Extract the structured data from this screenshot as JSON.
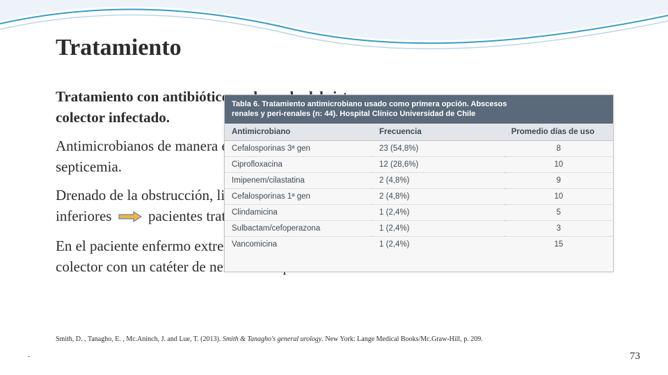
{
  "title": "Tratamiento",
  "body": {
    "p1a": "Tratamiento con antibióticos y drenado del sistema",
    "p1b": "colector infectado.",
    "p2a": "Antimicrobianos de manera empírica para así prevenir",
    "p2b": "septicemia.",
    "p3a": "Drenado de la obstrucción, litiasis de vías urinarias",
    "p3b_prefix": "inferiores",
    "p3b_suffix": "pacientes tratados.",
    "p4a": "En el paciente enfermo extremo, aliviar la obstrucción del",
    "p4b": "colector con un catéter de nefrostomía percutánea."
  },
  "table": {
    "header_line1": "Tabla 6. Tratamiento antimicrobiano usado como primera opción. Abscesos",
    "header_line2": "renales y peri-renales (n: 44). Hospital Clínico Universidad de Chile",
    "columns": {
      "a": "Antimicrobiano",
      "b": "Frecuencia",
      "c": "Promedio días de uso"
    },
    "rows": [
      {
        "a": "Cefalosporinas 3ª gen",
        "b": "23  (54,8%)",
        "c": "8"
      },
      {
        "a": "Ciprofloxacina",
        "b": "12  (28,6%)",
        "c": "10"
      },
      {
        "a": "Imipenem/cilastatina",
        "b": "2   (4,8%)",
        "c": "9"
      },
      {
        "a": "Cefalosporinas 1ª gen",
        "b": "2   (4,8%)",
        "c": "10"
      },
      {
        "a": "Clindamicina",
        "b": "1   (2,4%)",
        "c": "5"
      },
      {
        "a": "Sulbactam/cefoperazona",
        "b": "1   (2,4%)",
        "c": "3"
      },
      {
        "a": "Vancomicina",
        "b": "1   (2,4%)",
        "c": "15"
      }
    ]
  },
  "citation": {
    "authors": "Smith, D. , Tanagho, E. , Mc.Aninch, J. and Lue, T. (2013). ",
    "title_italic": "Smith & Tanagho's general urology",
    "rest": ". New York: Lange Medical Books/Mc.Graw-Hill, p. 209."
  },
  "page_number": "73",
  "colors": {
    "swoosh_fill": "#e6eef5",
    "swoosh_line": "#3a9bc4",
    "arrow_fill": "#f2b544",
    "arrow_outline": "#3a6fb0",
    "table_header_bg": "#5b6a7a",
    "table_subhead_bg": "#e2e6ea"
  }
}
